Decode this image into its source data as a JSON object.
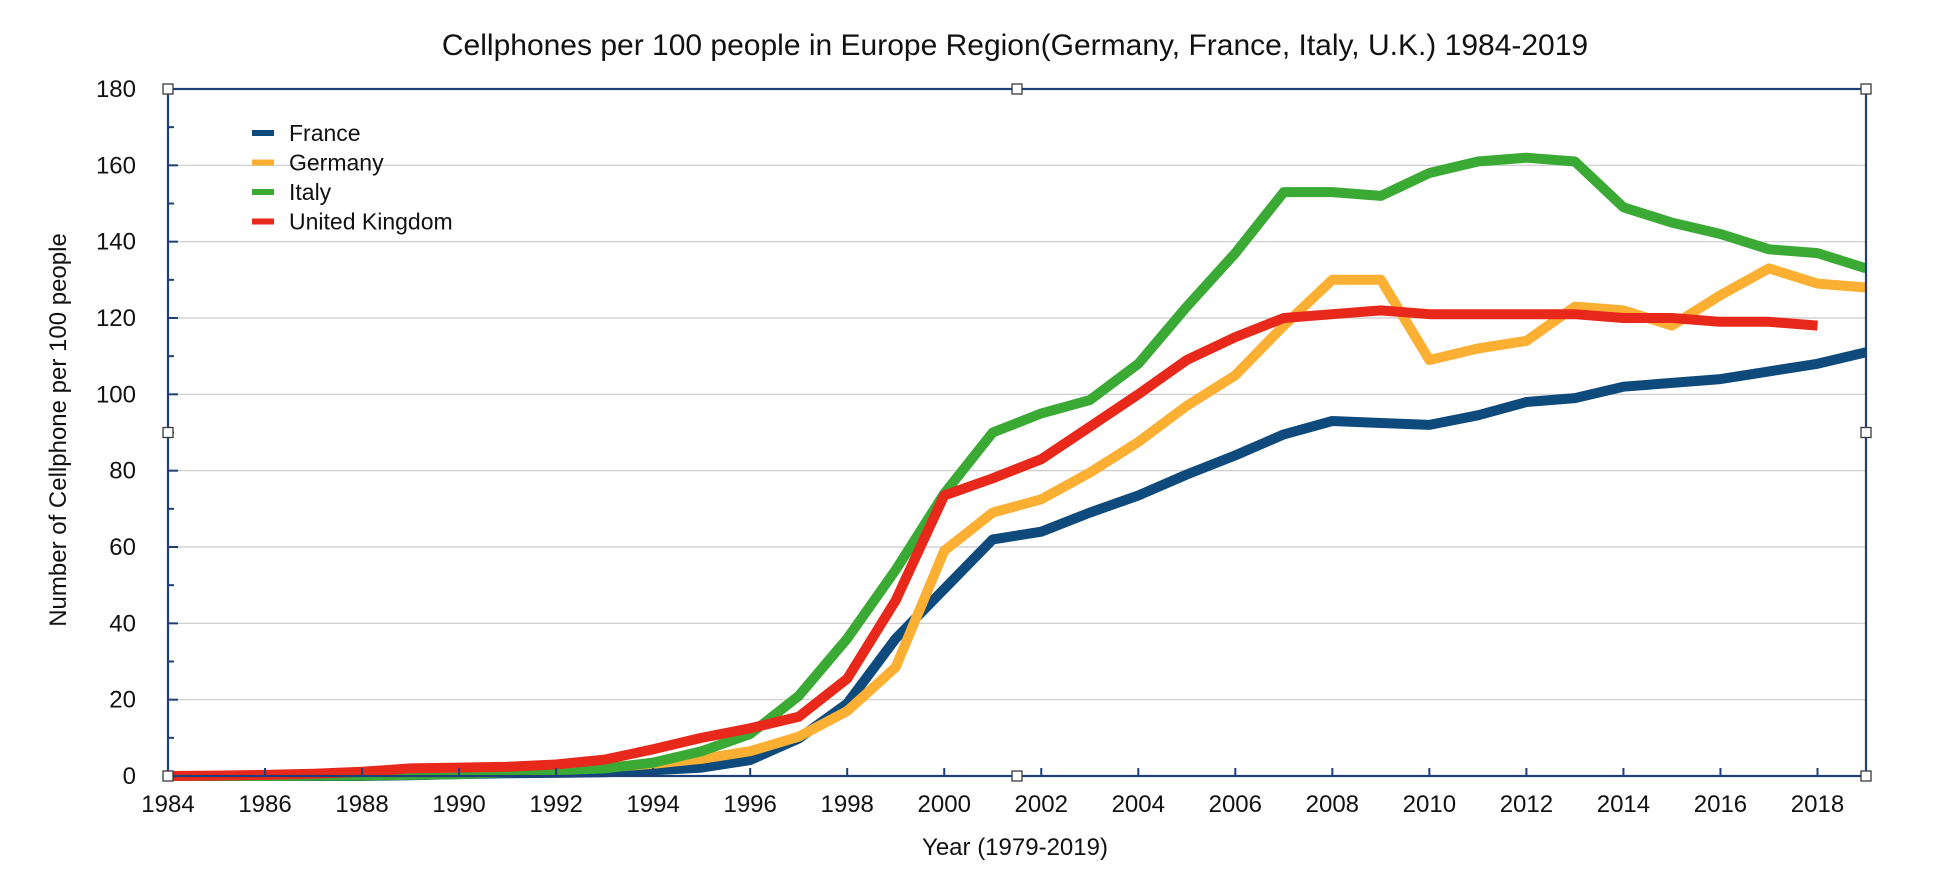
{
  "chart_data": {
    "type": "line",
    "title": "Cellphones per 100 people in Europe Region(Germany, France, Italy, U.K.) 1984-2019",
    "xlabel": "Year (1979-2019)",
    "ylabel": "Number of Cellphone per 100 people",
    "xlim": [
      1984,
      2019
    ],
    "ylim": [
      0,
      180
    ],
    "x_ticks": [
      "1984",
      "1986",
      "1988",
      "1990",
      "1992",
      "1994",
      "1996",
      "1998",
      "2000",
      "2002",
      "2004",
      "2006",
      "2008",
      "2010",
      "2012",
      "2014",
      "2016",
      "2018"
    ],
    "y_ticks": [
      "0",
      "20",
      "40",
      "60",
      "80",
      "100",
      "120",
      "140",
      "160",
      "180"
    ],
    "grid": true,
    "legend_position": "top-left",
    "series": [
      {
        "name": "France",
        "color": "#0e4a7c",
        "x": [
          1984,
          1985,
          1986,
          1987,
          1988,
          1989,
          1990,
          1991,
          1992,
          1993,
          1994,
          1995,
          1996,
          1997,
          1998,
          1999,
          2000,
          2001,
          2002,
          2003,
          2004,
          2005,
          2006,
          2007,
          2008,
          2009,
          2010,
          2011,
          2012,
          2013,
          2014,
          2015,
          2016,
          2017,
          2018,
          2019
        ],
        "y": [
          0,
          0,
          0,
          0,
          0,
          0.2,
          0.5,
          0.7,
          0.8,
          1,
          1.5,
          2.2,
          4.2,
          9.8,
          19,
          36,
          49,
          62,
          64,
          69,
          73.5,
          79,
          84,
          89.5,
          93,
          92.5,
          92,
          94.5,
          98,
          99,
          102,
          103,
          104,
          106,
          108,
          111
        ]
      },
      {
        "name": "Germany",
        "color": "#fbb034",
        "x": [
          1984,
          1985,
          1986,
          1987,
          1988,
          1989,
          1990,
          1991,
          1992,
          1993,
          1994,
          1995,
          1996,
          1997,
          1998,
          1999,
          2000,
          2001,
          2002,
          2003,
          2004,
          2005,
          2006,
          2007,
          2008,
          2009,
          2010,
          2011,
          2012,
          2013,
          2014,
          2015,
          2016,
          2017,
          2018,
          2019
        ],
        "y": [
          0,
          0,
          0.1,
          0.2,
          0.4,
          0.6,
          0.9,
          1.2,
          1.7,
          2.2,
          3.2,
          4.5,
          6.5,
          10.3,
          17,
          28.5,
          59,
          69,
          72.5,
          79.5,
          87.5,
          97,
          105,
          118,
          130,
          130,
          109,
          112,
          114,
          123,
          122,
          118,
          126,
          133,
          129,
          128
        ]
      },
      {
        "name": "Italy",
        "color": "#3aaa35",
        "x": [
          1984,
          1985,
          1986,
          1987,
          1988,
          1989,
          1990,
          1991,
          1992,
          1993,
          1994,
          1995,
          1996,
          1997,
          1998,
          1999,
          2000,
          2001,
          2002,
          2003,
          2004,
          2005,
          2006,
          2007,
          2008,
          2009,
          2010,
          2011,
          2012,
          2013,
          2014,
          2015,
          2016,
          2017,
          2018,
          2019
        ],
        "y": [
          0,
          0,
          0,
          0.1,
          0.1,
          0.3,
          0.5,
          1,
          1.5,
          2,
          3.5,
          6.5,
          11,
          21,
          36,
          54,
          74,
          90,
          95,
          98.5,
          108,
          123,
          137,
          153,
          153,
          152,
          158,
          161,
          162,
          161,
          149,
          145,
          142,
          138,
          137,
          133
        ]
      },
      {
        "name": "United Kingdom",
        "color": "#e8281a",
        "x": [
          1984,
          1985,
          1986,
          1987,
          1988,
          1989,
          1990,
          1991,
          1992,
          1993,
          1994,
          1995,
          1996,
          1997,
          1998,
          1999,
          2000,
          2001,
          2002,
          2003,
          2004,
          2005,
          2006,
          2007,
          2008,
          2009,
          2010,
          2011,
          2012,
          2013,
          2014,
          2015,
          2016,
          2017,
          2018
        ],
        "y": [
          0,
          0.1,
          0.3,
          0.6,
          1.1,
          2,
          2.2,
          2.4,
          3,
          4.3,
          7,
          10,
          12.5,
          15.5,
          25.5,
          46,
          73.5,
          78,
          83,
          91.5,
          100,
          109,
          115,
          120,
          121,
          122,
          121,
          121,
          121,
          121,
          120,
          120,
          119,
          119,
          118
        ]
      }
    ]
  }
}
